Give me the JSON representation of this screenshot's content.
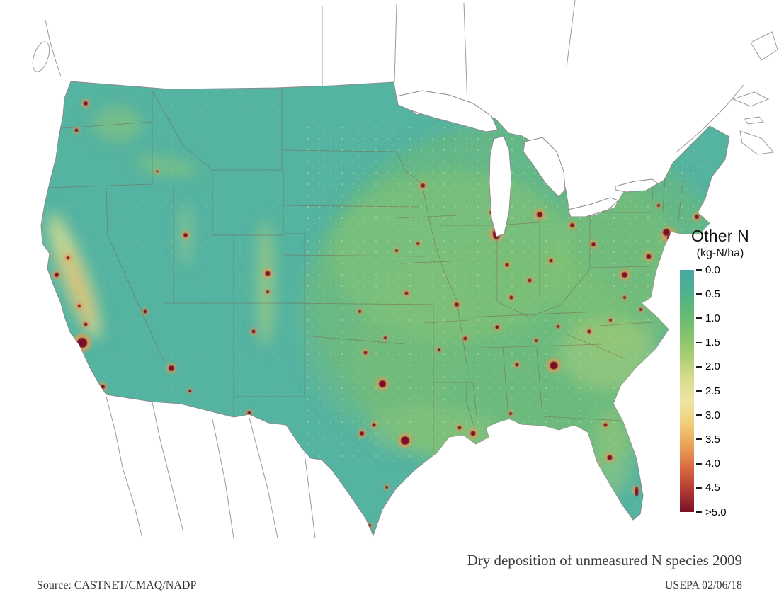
{
  "legend": {
    "title": "Other N",
    "units": "(kg-N/ha)",
    "ticks": [
      "0.0",
      "0.5",
      "1.0",
      "1.5",
      "2.0",
      "2.5",
      "3.0",
      "3.5",
      "4.0",
      "4.5",
      ">5.0"
    ],
    "colorbar_stops": [
      "#47a8a2",
      "#4fb18d",
      "#63ba74",
      "#85c46b",
      "#adcf74",
      "#d9dc90",
      "#efe5a3",
      "#f0cd78",
      "#e9a158",
      "#d96a43",
      "#b23a33",
      "#7a1127"
    ]
  },
  "map": {
    "colors": {
      "base": "#54b3a1",
      "vegetated_green": "#6fbc72",
      "elevated_yellow": "#d9dc90",
      "hotspot_halo": "#e39a55",
      "hotspot_core": "#7b1127",
      "state_border": "#7d5a4f",
      "neighbor_outline": "#9b9b9b",
      "coast_outline": "#8a8a8a"
    }
  },
  "footer": {
    "caption": "Dry deposition of unmeasured N species 2009",
    "source": "Source: CASTNET/CMAQ/NADP",
    "credit": "USEPA 02/06/18"
  }
}
